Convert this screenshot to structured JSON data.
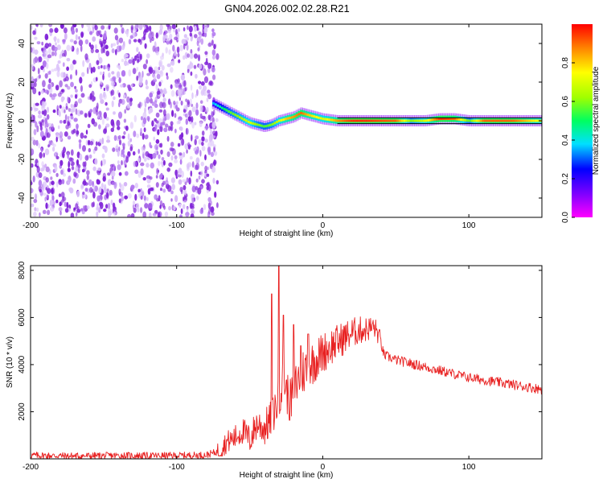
{
  "title": "GN04.2026.002.02.28.R21",
  "colors": {
    "snr_line": "#e82020",
    "noise_dots": "#7f22d8",
    "band_edge": "#000000"
  },
  "colorbar": {
    "label": "Normalized spectral amplitude",
    "range": [
      0.0,
      1.0
    ],
    "tick_labels": [
      "0.0",
      "0.2",
      "0.4",
      "0.6",
      "0.8"
    ],
    "colormap": [
      "#ff00ff",
      "#8000ff",
      "#0000ff",
      "#00e0ff",
      "#00ff60",
      "#a0ff00",
      "#ffff00",
      "#ff8000",
      "#ff0000"
    ]
  },
  "chart_data": [
    {
      "type": "heatmap",
      "name": "spectrogram",
      "xlabel": "Height of straight line (km)",
      "ylabel": "Frequency (Hz)",
      "xlim": [
        -200,
        150
      ],
      "ylim": [
        -50,
        50
      ],
      "x_tick_labels": [
        "-200",
        "-100",
        "0",
        "100"
      ],
      "y_tick_labels": [
        "-40",
        "-20",
        "0",
        "20",
        "40"
      ],
      "noise_region_x": [
        -200,
        -72
      ],
      "ridge": {
        "x": [
          -75,
          -70,
          -65,
          -60,
          -55,
          -50,
          -45,
          -40,
          -35,
          -30,
          -25,
          -20,
          -15,
          -10,
          -5,
          0,
          10,
          20,
          30,
          40,
          50,
          60,
          70,
          80,
          90,
          100,
          110,
          120,
          130,
          140,
          150
        ],
        "freq": [
          9,
          7,
          5,
          3,
          1,
          -1,
          -2,
          -3,
          -2,
          0,
          1,
          2,
          4,
          3,
          2,
          1,
          0,
          0,
          0,
          0,
          0,
          0,
          0,
          1,
          1,
          0,
          0,
          0,
          0,
          0,
          0
        ],
        "amplitude": [
          0.35,
          0.45,
          0.55,
          0.6,
          0.65,
          0.7,
          0.6,
          0.55,
          0.6,
          0.7,
          0.8,
          0.85,
          0.9,
          0.8,
          0.75,
          0.7,
          0.85,
          0.95,
          0.95,
          0.92,
          0.9,
          0.6,
          0.7,
          0.95,
          0.9,
          0.55,
          0.9,
          0.9,
          0.9,
          0.8,
          0.7
        ]
      }
    },
    {
      "type": "line",
      "name": "snr",
      "xlabel": "Height of straight line (km)",
      "ylabel": "SNR (10 * v/v)",
      "xlim": [
        -200,
        150
      ],
      "ylim": [
        0,
        8200
      ],
      "x_tick_labels": [
        "-200",
        "-100",
        "0",
        "100"
      ],
      "y_tick_labels": [
        "2000",
        "4000",
        "6000",
        "8000"
      ],
      "series": [
        {
          "name": "SNR",
          "x": [
            -200,
            -170,
            -140,
            -110,
            -80,
            -72,
            -66,
            -60,
            -55,
            -50,
            -45,
            -40,
            -35,
            -30,
            -27,
            -25,
            -22,
            -20,
            -17,
            -15,
            -10,
            -5,
            0,
            5,
            10,
            15,
            20,
            25,
            30,
            35,
            38,
            42,
            50,
            60,
            70,
            80,
            90,
            100,
            110,
            120,
            130,
            140,
            150
          ],
          "values": [
            150,
            120,
            140,
            130,
            160,
            300,
            700,
            900,
            1200,
            800,
            1500,
            1300,
            1700,
            2600,
            3500,
            2900,
            2400,
            3000,
            3300,
            3600,
            3900,
            4200,
            4500,
            4750,
            4950,
            5150,
            5350,
            5450,
            5500,
            5600,
            5300,
            4400,
            4200,
            4050,
            3900,
            3750,
            3600,
            3450,
            3350,
            3250,
            3150,
            3050,
            2950
          ],
          "spikes": [
            {
              "x": -35,
              "value": 7000
            },
            {
              "x": -30,
              "value": 8200
            },
            {
              "x": -27,
              "value": 6100
            },
            {
              "x": -20,
              "value": 5700
            },
            {
              "x": -15,
              "value": 4800
            },
            {
              "x": -10,
              "value": 5300
            }
          ],
          "noise_amplitude": 150
        }
      ]
    }
  ]
}
